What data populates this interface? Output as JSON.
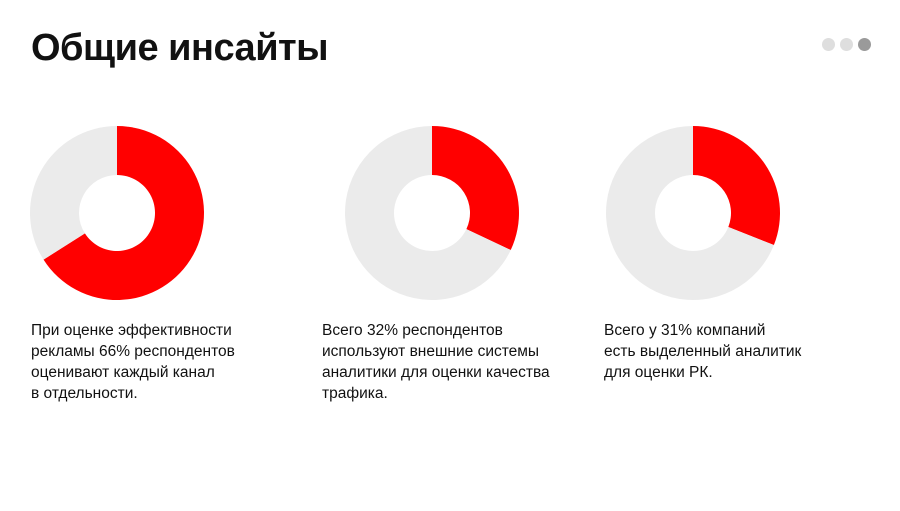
{
  "slide": {
    "title": "Общие инсайты",
    "pager": {
      "total": 3,
      "active": 3
    }
  },
  "colors": {
    "accent": "#ff0000",
    "remainder": "#ebebeb",
    "background": "#ffffff",
    "text": "#111111"
  },
  "chart_data": [
    {
      "type": "pie",
      "variant": "donut",
      "values": [
        66,
        34
      ],
      "caption": "При оценке эффективности\nрекламы 66% респондентов\nоценивают каждый канал\nв отдельности."
    },
    {
      "type": "pie",
      "variant": "donut",
      "values": [
        32,
        68
      ],
      "caption": "Всего 32% респондентов\nиспользуют внешние системы\nаналитики для оценки качества\nтрафика."
    },
    {
      "type": "pie",
      "variant": "donut",
      "values": [
        31,
        69
      ],
      "caption": "Всего у 31% компаний\nесть выделенный аналитик\nдля оценки РК."
    }
  ]
}
